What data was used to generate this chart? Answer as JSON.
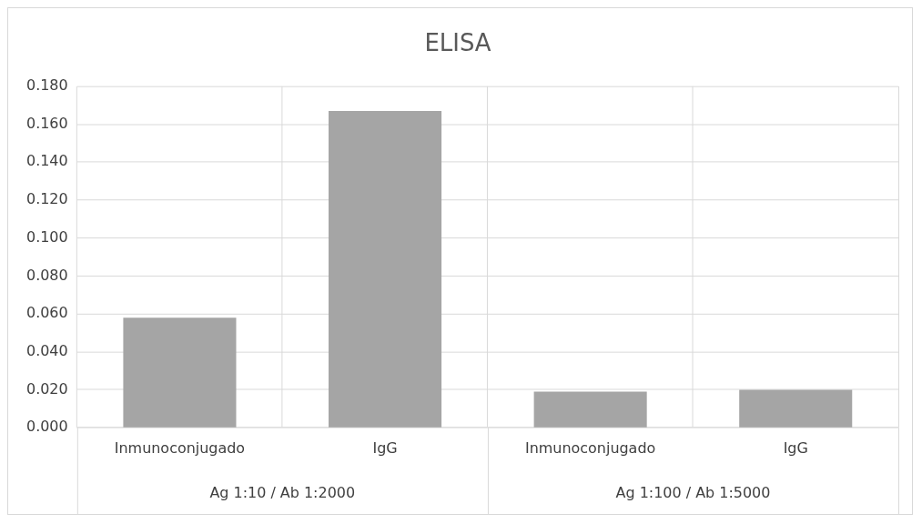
{
  "chart_data": {
    "type": "bar",
    "title": "ELISA",
    "categories": [
      "Inmunoconjugado",
      "IgG",
      "Inmunoconjugado",
      "IgG"
    ],
    "values": [
      0.058,
      0.167,
      0.019,
      0.02
    ],
    "color": "#a5a5a5",
    "ylim": [
      0,
      0.18
    ],
    "yticks": [
      {
        "value": 0,
        "label": "0.000"
      },
      {
        "value": 0.02,
        "label": "0.020"
      },
      {
        "value": 0.04,
        "label": "0.040"
      },
      {
        "value": 0.06,
        "label": "0.060"
      },
      {
        "value": 0.08,
        "label": "0.080"
      },
      {
        "value": 0.1,
        "label": "0.100"
      },
      {
        "value": 0.12,
        "label": "0.120"
      },
      {
        "value": 0.14,
        "label": "0.140"
      },
      {
        "value": 0.16,
        "label": "0.160"
      },
      {
        "value": 0.18,
        "label": "0.180"
      }
    ],
    "annotations": [
      "Ag 1:10 / Ab 1:2000",
      "Ag 1:100 / Ab 1:5000"
    ],
    "grid": true
  }
}
